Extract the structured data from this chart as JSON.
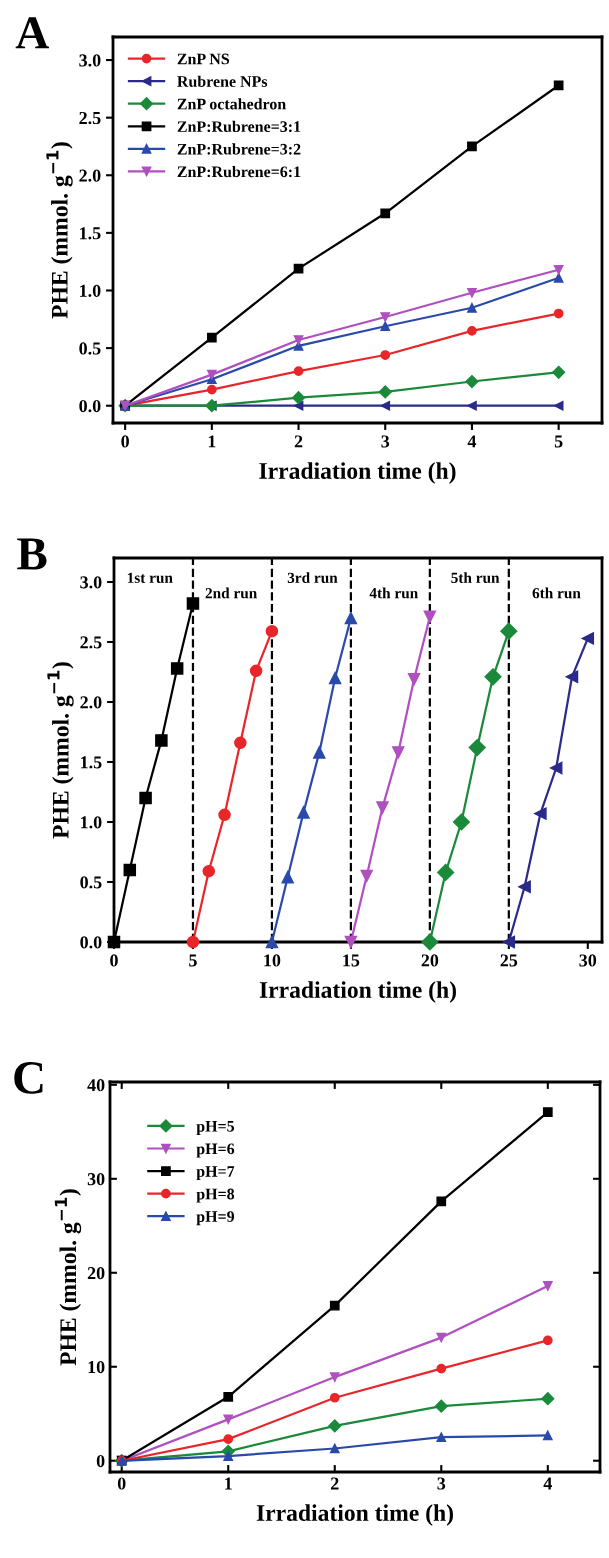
{
  "chart_data": [
    {
      "type": "line",
      "title": "A",
      "xlabel": "Irradiation time (h)",
      "ylabel": "PHE (mmol. g$^{−1}$)",
      "x": [
        0,
        1,
        2,
        3,
        4,
        5
      ],
      "xlim": [
        -0.14,
        5.5
      ],
      "xticks": [
        0,
        1,
        2,
        3,
        4,
        5
      ],
      "ylim": [
        -0.15,
        3.2
      ],
      "yticks": [
        {
          "value": 0,
          "label": "0.0"
        },
        0.5,
        {
          "value": 1,
          "label": "1.0"
        },
        1.5,
        {
          "value": 2,
          "label": "2.0"
        },
        2.5,
        {
          "value": 3,
          "label": "3.0"
        }
      ],
      "legend": "top left",
      "grid": false,
      "series": [
        {
          "name": "ZnP NS",
          "color": "#e8262a",
          "marker": "circle",
          "values": [
            0,
            0.14,
            0.3,
            0.44,
            0.65,
            0.8
          ]
        },
        {
          "name": "Rubrene NPs",
          "color": "#2a2a8a",
          "marker": "triangle_left",
          "values": [
            0,
            0,
            0,
            0,
            0,
            0
          ]
        },
        {
          "name": "ZnP octahedron",
          "color": "#1a8a3a",
          "marker": "diamond",
          "values": [
            0,
            0,
            0.07,
            0.12,
            0.21,
            0.29
          ]
        },
        {
          "name": "ZnP:Rubrene=3:1",
          "color": "#000000",
          "marker": "square",
          "values": [
            0,
            0.59,
            1.19,
            1.67,
            2.25,
            2.78
          ]
        },
        {
          "name": "ZnP:Rubrene=3:2",
          "color": "#2a4aaa",
          "marker": "triangle",
          "values": [
            0,
            0.23,
            0.52,
            0.69,
            0.85,
            1.11
          ]
        },
        {
          "name": "ZnP:Rubrene=6:1",
          "color": "#b050c0",
          "marker": "triangle_down",
          "values": [
            0,
            0.27,
            0.57,
            0.77,
            0.98,
            1.18
          ]
        }
      ]
    },
    {
      "type": "line",
      "title": "B",
      "xlabel": "Irradiation time (h)",
      "ylabel": "PHE (mmol. g$^{−1}$)",
      "xlim": [
        0,
        30.9
      ],
      "xticks": [
        0,
        5,
        10,
        15,
        20,
        25,
        30
      ],
      "ylim": [
        0,
        3.2
      ],
      "yticks": [
        {
          "value": 0,
          "label": "0.0"
        },
        0.5,
        {
          "value": 1,
          "label": "1.0"
        },
        1.5,
        {
          "value": 2,
          "label": "2.0"
        },
        2.5,
        {
          "value": 3,
          "label": "3.0"
        }
      ],
      "grid": false,
      "series": [
        {
          "color": "#000000",
          "marker": "square",
          "x": [
            0,
            1,
            2,
            3,
            4,
            5
          ],
          "values": [
            0,
            0.6,
            1.2,
            1.68,
            2.28,
            2.82
          ]
        },
        {
          "color": "#e8262a",
          "marker": "circle",
          "x": [
            5,
            6,
            7,
            8,
            9,
            10
          ],
          "values": [
            0,
            0.59,
            1.06,
            1.66,
            2.26,
            2.59
          ]
        },
        {
          "color": "#2a4aaa",
          "marker": "triangle",
          "x": [
            10,
            11,
            12,
            13,
            14,
            15
          ],
          "values": [
            0,
            0.54,
            1.08,
            1.58,
            2.2,
            2.7
          ]
        },
        {
          "color": "#b050c0",
          "marker": "triangle_down",
          "x": [
            15,
            16,
            17,
            18,
            19,
            20
          ],
          "values": [
            0,
            0.55,
            1.12,
            1.58,
            2.19,
            2.71
          ]
        },
        {
          "color": "#1a8a3a",
          "marker": "diamond",
          "x": [
            20,
            21,
            22,
            23,
            24,
            25
          ],
          "values": [
            0,
            0.58,
            1.0,
            1.62,
            2.21,
            2.59
          ]
        },
        {
          "color": "#2a2a8a",
          "marker": "triangle_left",
          "x": [
            25,
            26,
            27,
            28,
            29,
            30
          ],
          "values": [
            0,
            0.46,
            1.07,
            1.45,
            2.21,
            2.53
          ]
        }
      ],
      "ref_lines": [
        {
          "axis": "x",
          "value": 5,
          "color": "#000000",
          "line_style": "dashed"
        },
        {
          "axis": "x",
          "value": 10,
          "color": "#000000",
          "line_style": "dashed"
        },
        {
          "axis": "x",
          "value": 15,
          "color": "#000000",
          "line_style": "dashed"
        },
        {
          "axis": "x",
          "value": 20,
          "color": "#000000",
          "line_style": "dashed"
        },
        {
          "axis": "x",
          "value": 25,
          "color": "#000000",
          "line_style": "dashed"
        }
      ],
      "annotations": [
        "1st run",
        "2nd run",
        "3rd run",
        "4th run",
        "5th run",
        "6th run"
      ]
    },
    {
      "type": "line",
      "title": "C",
      "xlabel": "Irradiation time (h)",
      "ylabel": "PHE (mmol. g$^{−1}$)",
      "x": [
        0,
        1,
        2,
        3,
        4
      ],
      "xlim": [
        -0.11,
        4.49
      ],
      "xticks": [
        0,
        1,
        2,
        3,
        4
      ],
      "ylim": [
        -1.2,
        40.3
      ],
      "yticks": [
        0,
        10,
        20,
        30,
        40
      ],
      "legend": "top left",
      "grid": false,
      "series": [
        {
          "name": "pH=5",
          "color": "#1a8a3a",
          "marker": "diamond",
          "values": [
            0,
            1.0,
            3.7,
            5.8,
            6.6
          ]
        },
        {
          "name": "pH=6",
          "color": "#b050c0",
          "marker": "triangle_down",
          "values": [
            0,
            4.4,
            8.9,
            13.1,
            18.6
          ]
        },
        {
          "name": "pH=7",
          "color": "#000000",
          "marker": "square",
          "values": [
            0,
            6.8,
            16.5,
            27.6,
            37.1
          ]
        },
        {
          "name": "pH=8",
          "color": "#e8262a",
          "marker": "circle",
          "values": [
            0,
            2.3,
            6.7,
            9.8,
            12.8
          ]
        },
        {
          "name": "pH=9",
          "color": "#2a4aaa",
          "marker": "triangle",
          "values": [
            0,
            0.5,
            1.3,
            2.5,
            2.7
          ]
        }
      ]
    }
  ]
}
